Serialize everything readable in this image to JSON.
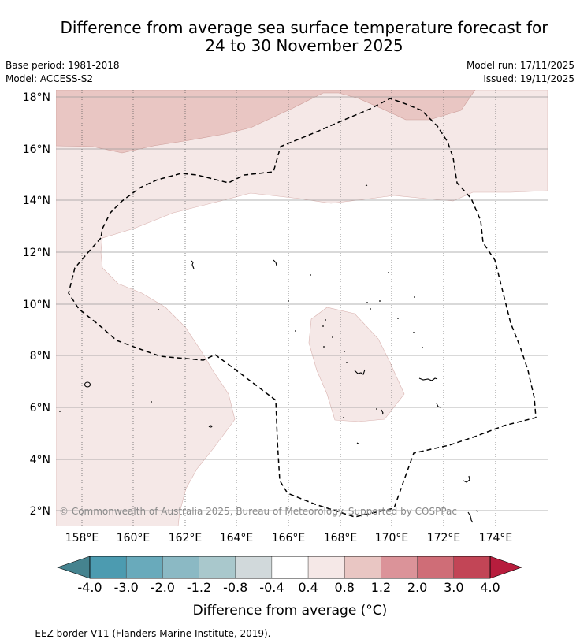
{
  "title_line1": "Difference from average sea surface temperature forecast for",
  "title_line2": "24 to 30 November 2025",
  "meta": {
    "base_period": "Base period: 1981-2018",
    "model": "Model: ACCESS-S2",
    "model_run": "Model run: 17/11/2025",
    "issued": "Issued: 19/11/2025"
  },
  "map": {
    "lat_labels": [
      "18°N",
      "16°N",
      "14°N",
      "12°N",
      "10°N",
      "8°N",
      "6°N",
      "4°N",
      "2°N"
    ],
    "lon_labels": [
      "158°E",
      "160°E",
      "162°E",
      "164°E",
      "166°E",
      "168°E",
      "170°E",
      "172°E",
      "174°E"
    ],
    "credit": "© Commonwealth of Australia 2025, Bureau of Meteorology. Supported by COSPPac",
    "region_colors": {
      "band_0_4_0_8": "#f5e8e7",
      "band_0_8_1_2": "#e9c6c3"
    }
  },
  "colorbar": {
    "ticks": [
      "-4.0",
      "-3.0",
      "-2.0",
      "-1.2",
      "-0.8",
      "-0.4",
      "0.4",
      "0.8",
      "1.2",
      "2.0",
      "3.0",
      "4.0"
    ],
    "colors": [
      "#4c9bb0",
      "#69aabb",
      "#8bb9c4",
      "#a9c8cc",
      "#d1d9db",
      "#ffffff",
      "#f5e8e7",
      "#e9c6c3",
      "#db9399",
      "#cf6d77",
      "#c24556"
    ],
    "under_color": "#45838f",
    "over_color": "#b71d3d",
    "label": "Difference from average (°C)"
  },
  "legend_footer": "--  --  -- EEZ border V11 (Flanders Marine Institute, 2019)."
}
